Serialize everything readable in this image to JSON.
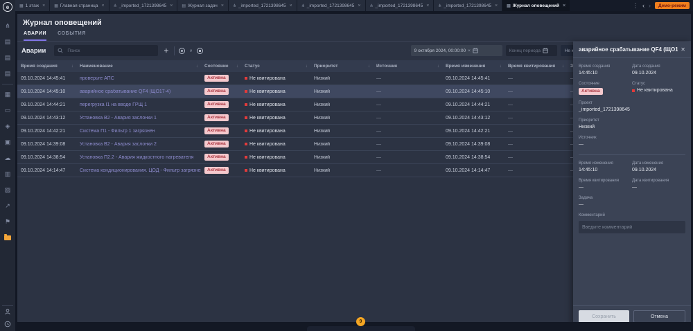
{
  "colors": {
    "accent": "#8276e8",
    "alarm_red": "#e23b3b",
    "badge_bg": "#f5c9cd",
    "badge_text": "#a93540",
    "active_folder": "#f2a53a",
    "demo_bg": "#ef7f1d"
  },
  "tab_bar": {
    "tabs": [
      {
        "label": "1 этаж",
        "icon": "floor-plan-icon",
        "glyph": "▦"
      },
      {
        "label": "Главная страница",
        "icon": "floor-plan-icon",
        "glyph": "▦"
      },
      {
        "label": "_imported_1721398645",
        "icon": "tree-icon",
        "glyph": "⋔"
      },
      {
        "label": "Журнал задач",
        "icon": "journal-icon",
        "glyph": "▤"
      },
      {
        "label": "_imported_1721398645",
        "icon": "tree-icon",
        "glyph": "⋔"
      },
      {
        "label": "_imported_1721398645",
        "icon": "tree-icon",
        "glyph": "⋔"
      },
      {
        "label": "_imported_1721398645",
        "icon": "tree-icon",
        "glyph": "⋔"
      },
      {
        "label": "_imported_1721398645",
        "icon": "tree-icon",
        "glyph": "⋔"
      },
      {
        "label": "Журнал оповещений",
        "icon": "journal-icon",
        "glyph": "▤",
        "active": true
      }
    ],
    "close_glyph": "×",
    "kebab": "⋮",
    "prev": "‹",
    "next": "›",
    "demo_badge": "Демо-режим"
  },
  "sidebar": {
    "logo_glyph": "e",
    "icons": [
      {
        "name": "tree-icon",
        "glyph": "⋔"
      },
      {
        "name": "journal-icon",
        "glyph": "▤"
      },
      {
        "name": "journal-icon",
        "glyph": "▤"
      },
      {
        "name": "journal-icon",
        "glyph": "▤"
      },
      {
        "name": "divider"
      },
      {
        "name": "building-icon",
        "glyph": "▦"
      },
      {
        "name": "screen-icon",
        "glyph": "▭"
      },
      {
        "name": "layers-icon",
        "glyph": "◈"
      },
      {
        "name": "box-icon",
        "glyph": "▣"
      },
      {
        "name": "cloud-icon",
        "glyph": "☁"
      },
      {
        "name": "package-icon",
        "glyph": "▥"
      },
      {
        "name": "hatch-icon",
        "glyph": "▨"
      },
      {
        "name": "chart-icon",
        "glyph": "↗"
      },
      {
        "name": "flag-icon",
        "glyph": "⚑"
      },
      {
        "name": "folder-icon",
        "glyph": "",
        "active": true
      }
    ]
  },
  "page": {
    "title": "Журнал оповещений",
    "tabs": [
      {
        "label": "АВАРИИ",
        "active": true
      },
      {
        "label": "СОБЫТИЯ",
        "active": false
      }
    ]
  },
  "toolbar": {
    "section_label": "Аварии",
    "search_placeholder": "Поиск",
    "add_label": "+",
    "ack_chevron": "∨",
    "date_from_value": "9 октября 2024, 00:00:00",
    "clear_glyph": "×",
    "date_to_placeholder": "Конец периода",
    "ack_filter_label": "Не квитированные"
  },
  "table": {
    "columns": [
      {
        "label": "Время создания",
        "sort": true
      },
      {
        "label": "Наименование",
        "sort": true
      },
      {
        "label": "Состояние",
        "sort": true
      },
      {
        "label": "Статус",
        "sort": true
      },
      {
        "label": "Приоритет",
        "sort": true
      },
      {
        "label": "Источник",
        "sort": true
      },
      {
        "label": "Время изменения",
        "sort": true
      },
      {
        "label": "Время квитирования",
        "sort": true
      },
      {
        "label": "Задача",
        "sort": false
      }
    ],
    "state_badge": "Активна",
    "status_text": "Не квитирована",
    "priority": "Низкий",
    "dash": "—",
    "rows": [
      {
        "created": "09.10.2024 14:45:41",
        "name": "проверьте АПС",
        "modified": "09.10.2024 14:45:41",
        "selected": false
      },
      {
        "created": "09.10.2024 14:45:10",
        "name": "аварийное срабатывание QF4 (ЩО17-4)",
        "modified": "09.10.2024 14:45:10",
        "selected": true
      },
      {
        "created": "09.10.2024 14:44:21",
        "name": "перегрузка I1 на вводе ГРЩ 1",
        "modified": "09.10.2024 14:44:21",
        "selected": false
      },
      {
        "created": "09.10.2024 14:43:12",
        "name": "Установка В2 - Авария заслонки 1",
        "modified": "09.10.2024 14:43:12",
        "selected": false
      },
      {
        "created": "09.10.2024 14:42:21",
        "name": "Система П1 - Фильтр 1 загрязнен",
        "modified": "09.10.2024 14:42:21",
        "selected": false
      },
      {
        "created": "09.10.2024 14:39:08",
        "name": "Установка В2 - Авария заслонки 2",
        "modified": "09.10.2024 14:39:08",
        "selected": false
      },
      {
        "created": "09.10.2024 14:38:54",
        "name": "Установка П2.2 - Авария жидкостного нагревателя",
        "modified": "09.10.2024 14:38:54",
        "selected": false
      },
      {
        "created": "09.10.2024 14:14:47",
        "name": "Система кондиционирования. ЦОД - Фильтр загрязнен",
        "modified": "09.10.2024 14:14:47",
        "selected": false
      }
    ]
  },
  "panel": {
    "title": "аварийное срабатывание QF4 (ЩО1...",
    "close_glyph": "✕",
    "fields": {
      "created_time": {
        "label": "Время создания",
        "value": "14:45:10"
      },
      "created_date": {
        "label": "Дата создания",
        "value": "09.10.2024"
      },
      "state": {
        "label": "Состояние",
        "value": "Активна"
      },
      "status": {
        "label": "Статус",
        "value": "Не квитирована"
      },
      "project": {
        "label": "Проект",
        "value": "_imported_1721398645"
      },
      "priority": {
        "label": "Приоритет",
        "value": "Низкий"
      },
      "source": {
        "label": "Источник",
        "value": "—"
      },
      "modified_time": {
        "label": "Время изменения",
        "value": "14:45:10"
      },
      "modified_date": {
        "label": "Дата изменения",
        "value": "09.10.2024"
      },
      "ack_time": {
        "label": "Время квитирования",
        "value": "—"
      },
      "ack_date": {
        "label": "Дата квитирования",
        "value": "—"
      },
      "task": {
        "label": "Задача",
        "value": "—"
      },
      "comment": {
        "label": "Комментарий",
        "placeholder": "Введите комментарий"
      }
    },
    "save_label": "Сохранить",
    "cancel_label": "Отмена"
  },
  "footer": {
    "alarm_count": "9"
  }
}
